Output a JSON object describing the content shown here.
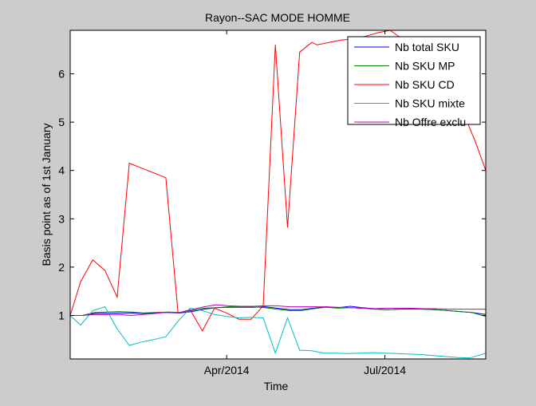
{
  "chart_data": {
    "type": "line",
    "title": "Rayon--SAC MODE HOMME",
    "xlabel": "Time",
    "ylabel": "Basis point as of 1st January",
    "xlim": [
      "2014-01-01",
      "2014-08-28"
    ],
    "ylim": [
      0.1,
      6.9
    ],
    "yticks": [
      1,
      2,
      3,
      4,
      5,
      6
    ],
    "xticks": [
      {
        "date": "2014-04-01",
        "label": "Apr/2014"
      },
      {
        "date": "2014-07-01",
        "label": "Jul/2014"
      }
    ],
    "grid": false,
    "legend": "top-right",
    "series": [
      {
        "name": "Nb total SKU",
        "color": "#0000ff",
        "x": [
          "2014-01-01",
          "2014-01-08",
          "2014-01-15",
          "2014-01-22",
          "2014-01-29",
          "2014-02-05",
          "2014-02-12",
          "2014-02-19",
          "2014-02-26",
          "2014-03-05",
          "2014-03-12",
          "2014-03-19",
          "2014-03-26",
          "2014-04-02",
          "2014-04-09",
          "2014-04-16",
          "2014-04-23",
          "2014-04-30",
          "2014-05-07",
          "2014-05-14",
          "2014-05-21",
          "2014-05-28",
          "2014-06-04",
          "2014-06-11",
          "2014-06-18",
          "2014-06-25",
          "2014-07-02",
          "2014-07-09",
          "2014-07-16",
          "2014-07-23",
          "2014-07-30",
          "2014-08-06",
          "2014-08-13",
          "2014-08-20",
          "2014-08-28"
        ],
        "values": [
          1.0,
          1.0,
          1.04,
          1.04,
          1.05,
          1.05,
          1.04,
          1.05,
          1.06,
          1.05,
          1.08,
          1.13,
          1.16,
          1.17,
          1.17,
          1.17,
          1.18,
          1.15,
          1.12,
          1.12,
          1.15,
          1.18,
          1.16,
          1.19,
          1.16,
          1.14,
          1.12,
          1.13,
          1.14,
          1.13,
          1.12,
          1.1,
          1.08,
          1.06,
          1.02
        ]
      },
      {
        "name": "Nb SKU MP",
        "color": "#007f00",
        "x": [
          "2014-01-01",
          "2014-01-08",
          "2014-01-15",
          "2014-01-22",
          "2014-01-29",
          "2014-02-05",
          "2014-02-12",
          "2014-02-19",
          "2014-02-26",
          "2014-03-05",
          "2014-03-12",
          "2014-03-19",
          "2014-03-26",
          "2014-04-02",
          "2014-04-09",
          "2014-04-16",
          "2014-04-23",
          "2014-04-30",
          "2014-05-07",
          "2014-05-14",
          "2014-05-21",
          "2014-05-28",
          "2014-06-04",
          "2014-06-11",
          "2014-06-18",
          "2014-06-25",
          "2014-07-02",
          "2014-07-09",
          "2014-07-16",
          "2014-07-23",
          "2014-07-30",
          "2014-08-06",
          "2014-08-13",
          "2014-08-20",
          "2014-08-28"
        ],
        "values": [
          1.0,
          1.0,
          1.06,
          1.07,
          1.08,
          1.07,
          1.05,
          1.06,
          1.07,
          1.06,
          1.1,
          1.15,
          1.16,
          1.18,
          1.18,
          1.18,
          1.16,
          1.13,
          1.1,
          1.1,
          1.14,
          1.17,
          1.15,
          1.16,
          1.15,
          1.13,
          1.12,
          1.13,
          1.13,
          1.13,
          1.12,
          1.1,
          1.08,
          1.06,
          0.98
        ]
      },
      {
        "name": "Nb SKU CD",
        "color": "#ff0000",
        "x": [
          "2014-01-01",
          "2014-01-07",
          "2014-01-14",
          "2014-01-21",
          "2014-01-28",
          "2014-02-04",
          "2014-02-11",
          "2014-02-18",
          "2014-02-25",
          "2014-03-04",
          "2014-03-11",
          "2014-03-18",
          "2014-03-25",
          "2014-04-01",
          "2014-04-08",
          "2014-04-15",
          "2014-04-22",
          "2014-04-29",
          "2014-05-06",
          "2014-05-13",
          "2014-05-20",
          "2014-05-23",
          "2014-05-30",
          "2014-06-06",
          "2014-06-13",
          "2014-06-20",
          "2014-06-27",
          "2014-07-04",
          "2014-07-11",
          "2014-07-18",
          "2014-07-25",
          "2014-08-01",
          "2014-08-08",
          "2014-08-15",
          "2014-08-22",
          "2014-08-28"
        ],
        "values": [
          1.0,
          1.7,
          2.15,
          1.93,
          1.38,
          4.15,
          4.05,
          3.95,
          3.85,
          1.05,
          1.12,
          0.68,
          1.15,
          1.05,
          0.92,
          0.92,
          1.2,
          6.6,
          2.82,
          6.45,
          6.65,
          6.6,
          6.65,
          6.7,
          6.72,
          6.78,
          6.85,
          6.9,
          6.72,
          6.5,
          6.2,
          5.9,
          5.6,
          5.2,
          4.6,
          4.0
        ]
      },
      {
        "name": "Nb SKU mixte",
        "color": "#00bfbf",
        "x": [
          "2014-01-01",
          "2014-01-07",
          "2014-01-14",
          "2014-01-21",
          "2014-01-28",
          "2014-02-04",
          "2014-02-11",
          "2014-02-18",
          "2014-02-25",
          "2014-03-04",
          "2014-03-11",
          "2014-03-18",
          "2014-03-25",
          "2014-04-01",
          "2014-04-08",
          "2014-04-15",
          "2014-04-22",
          "2014-04-29",
          "2014-05-06",
          "2014-05-13",
          "2014-05-20",
          "2014-05-27",
          "2014-06-03",
          "2014-06-10",
          "2014-06-17",
          "2014-06-24",
          "2014-07-01",
          "2014-07-08",
          "2014-07-15",
          "2014-07-22",
          "2014-07-29",
          "2014-08-05",
          "2014-08-12",
          "2014-08-19",
          "2014-08-28"
        ],
        "values": [
          1.0,
          0.8,
          1.1,
          1.18,
          0.72,
          0.38,
          0.45,
          0.5,
          0.56,
          0.88,
          1.15,
          1.1,
          1.02,
          0.98,
          0.95,
          0.96,
          0.95,
          0.22,
          0.95,
          0.28,
          0.27,
          0.22,
          0.22,
          0.21,
          0.22,
          0.23,
          0.22,
          0.21,
          0.2,
          0.19,
          0.17,
          0.15,
          0.13,
          0.12,
          0.22
        ]
      },
      {
        "name": "Nb Offre exclu",
        "color": "#bf00bf",
        "x": [
          "2014-01-01",
          "2014-01-08",
          "2014-01-15",
          "2014-01-22",
          "2014-01-29",
          "2014-02-05",
          "2014-02-12",
          "2014-02-19",
          "2014-02-26",
          "2014-03-05",
          "2014-03-12",
          "2014-03-19",
          "2014-03-26",
          "2014-04-02",
          "2014-04-09",
          "2014-04-16",
          "2014-04-23",
          "2014-04-30",
          "2014-05-07",
          "2014-05-14",
          "2014-05-21",
          "2014-05-28",
          "2014-06-04",
          "2014-06-11",
          "2014-06-18",
          "2014-06-25",
          "2014-07-02",
          "2014-07-09",
          "2014-07-16",
          "2014-07-23",
          "2014-07-30",
          "2014-08-06",
          "2014-08-13",
          "2014-08-20",
          "2014-08-28"
        ],
        "values": [
          1.0,
          1.0,
          1.02,
          1.02,
          1.02,
          1.0,
          1.02,
          1.04,
          1.07,
          1.06,
          1.12,
          1.18,
          1.22,
          1.2,
          1.19,
          1.19,
          1.2,
          1.2,
          1.18,
          1.18,
          1.18,
          1.18,
          1.17,
          1.16,
          1.15,
          1.14,
          1.15,
          1.15,
          1.15,
          1.14,
          1.14,
          1.13,
          1.13,
          1.13,
          1.13
        ]
      }
    ]
  }
}
